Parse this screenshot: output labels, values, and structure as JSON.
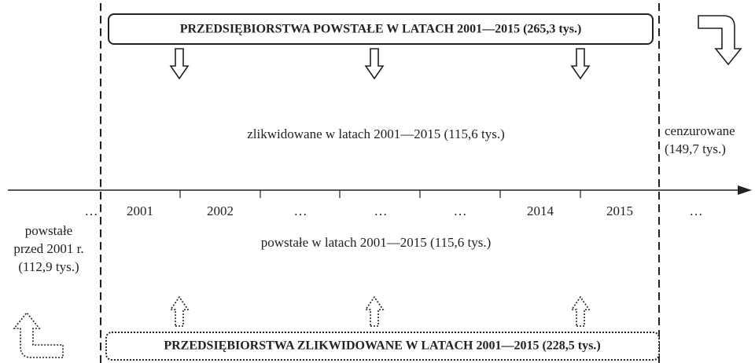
{
  "top_box": {
    "label": "PRZEDSIĘBIORSTWA POWSTAŁE W LATACH 2001—2015 (265,3 tys.)"
  },
  "middle_upper": {
    "label": "zlikwidowane w latach 2001—2015 (115,6 tys.)"
  },
  "right": {
    "lines": [
      "cenzurowane",
      "(149,7 tys.)"
    ]
  },
  "axis": {
    "labels": [
      "…",
      "2001",
      "2002",
      "…",
      "…",
      "…",
      "2014",
      "2015",
      "…"
    ]
  },
  "left": {
    "lines": [
      "powstałe",
      "przed 2001 r.",
      "(112,9 tys.)"
    ]
  },
  "middle_lower": {
    "label": "powstałe w latach 2001—2015 (115,6 tys.)"
  },
  "bottom_box": {
    "label": "PRZEDSIĘBIORSTWA ZLIKWIDOWANE W LATACH 2001—2015 (228,5 tys.)"
  }
}
